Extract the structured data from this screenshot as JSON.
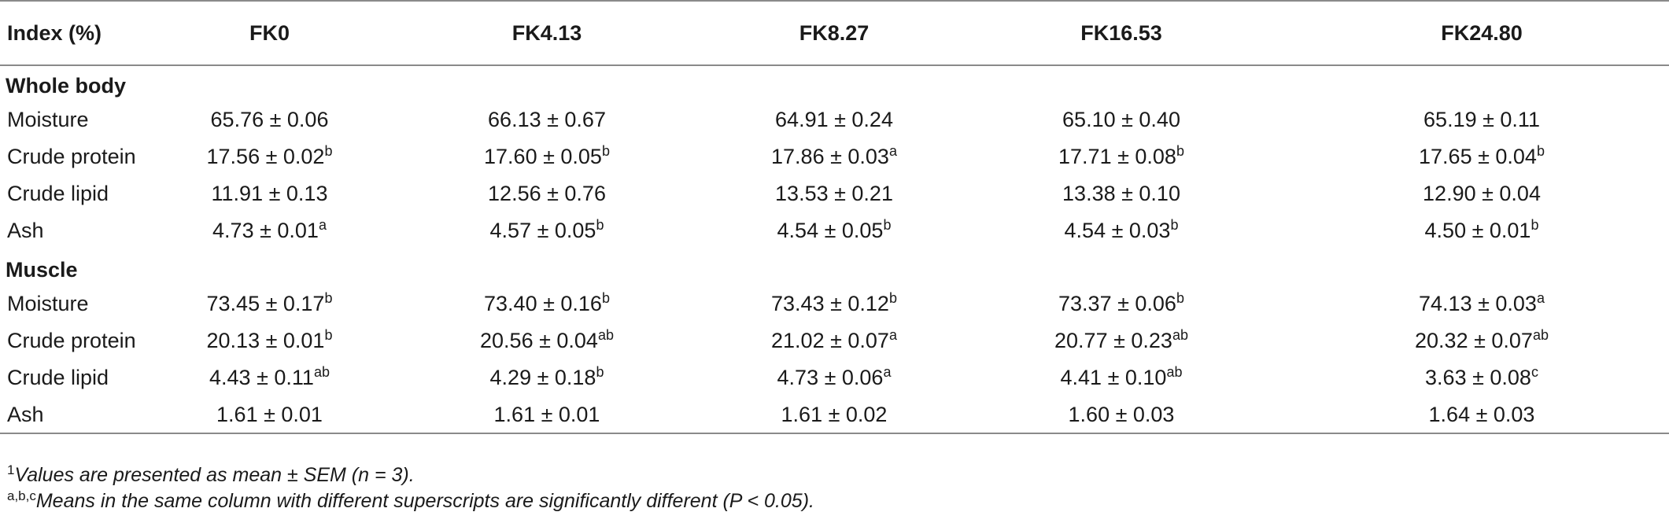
{
  "table": {
    "headers": [
      "Index (%)",
      "FK0",
      "FK4.13",
      "FK8.27",
      "FK16.53",
      "FK24.80"
    ],
    "sections": [
      {
        "title": "Whole body",
        "rows": [
          {
            "label": "Moisture",
            "cells": [
              {
                "v": "65.76 ± 0.06",
                "s": ""
              },
              {
                "v": "66.13 ± 0.67",
                "s": ""
              },
              {
                "v": "64.91 ± 0.24",
                "s": ""
              },
              {
                "v": "65.10 ± 0.40",
                "s": ""
              },
              {
                "v": "65.19 ± 0.11",
                "s": ""
              }
            ]
          },
          {
            "label": "Crude protein",
            "cells": [
              {
                "v": "17.56 ± 0.02",
                "s": "b"
              },
              {
                "v": "17.60 ± 0.05",
                "s": "b"
              },
              {
                "v": "17.86 ± 0.03",
                "s": "a"
              },
              {
                "v": "17.71 ± 0.08",
                "s": "b"
              },
              {
                "v": "17.65 ± 0.04",
                "s": "b"
              }
            ]
          },
          {
            "label": "Crude lipid",
            "cells": [
              {
                "v": "11.91 ± 0.13",
                "s": ""
              },
              {
                "v": "12.56 ± 0.76",
                "s": ""
              },
              {
                "v": "13.53 ± 0.21",
                "s": ""
              },
              {
                "v": "13.38 ± 0.10",
                "s": ""
              },
              {
                "v": "12.90 ± 0.04",
                "s": ""
              }
            ]
          },
          {
            "label": "Ash",
            "cells": [
              {
                "v": "4.73 ± 0.01",
                "s": "a"
              },
              {
                "v": "4.57 ± 0.05",
                "s": "b"
              },
              {
                "v": "4.54 ± 0.05",
                "s": "b"
              },
              {
                "v": "4.54 ± 0.03",
                "s": "b"
              },
              {
                "v": "4.50 ± 0.01",
                "s": "b"
              }
            ]
          }
        ]
      },
      {
        "title": "Muscle",
        "rows": [
          {
            "label": "Moisture",
            "cells": [
              {
                "v": "73.45 ± 0.17",
                "s": "b"
              },
              {
                "v": "73.40 ± 0.16",
                "s": "b"
              },
              {
                "v": "73.43 ± 0.12",
                "s": "b"
              },
              {
                "v": "73.37 ± 0.06",
                "s": "b"
              },
              {
                "v": "74.13 ± 0.03",
                "s": "a"
              }
            ]
          },
          {
            "label": "Crude protein",
            "cells": [
              {
                "v": "20.13 ± 0.01",
                "s": "b"
              },
              {
                "v": "20.56 ± 0.04",
                "s": "ab"
              },
              {
                "v": "21.02 ± 0.07",
                "s": "a"
              },
              {
                "v": "20.77 ± 0.23",
                "s": "ab"
              },
              {
                "v": "20.32 ± 0.07",
                "s": "ab"
              }
            ]
          },
          {
            "label": "Crude lipid",
            "cells": [
              {
                "v": "4.43 ± 0.11",
                "s": "ab"
              },
              {
                "v": "4.29 ± 0.18",
                "s": "b"
              },
              {
                "v": "4.73 ± 0.06",
                "s": "a"
              },
              {
                "v": "4.41 ± 0.10",
                "s": "ab"
              },
              {
                "v": "3.63 ± 0.08",
                "s": "c"
              }
            ]
          },
          {
            "label": "Ash",
            "cells": [
              {
                "v": "1.61 ± 0.01",
                "s": ""
              },
              {
                "v": "1.61 ± 0.01",
                "s": ""
              },
              {
                "v": "1.61 ± 0.02",
                "s": ""
              },
              {
                "v": "1.60 ± 0.03",
                "s": ""
              },
              {
                "v": "1.64 ± 0.03",
                "s": ""
              }
            ]
          }
        ]
      }
    ]
  },
  "footnotes": [
    {
      "mark": "1",
      "text": "Values are presented as mean ± SEM (n = 3)."
    },
    {
      "mark": "a,b,c",
      "text": "Means in the same column with different superscripts are significantly different (P < 0.05)."
    }
  ]
}
